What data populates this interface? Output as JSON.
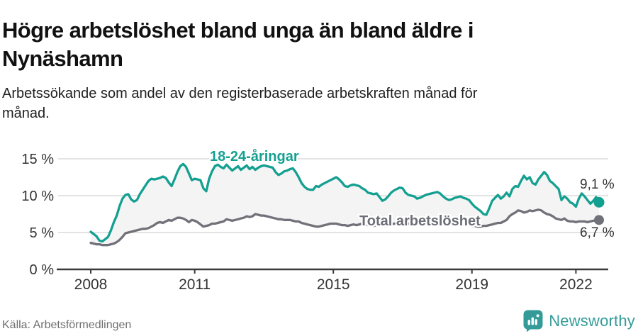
{
  "header": {
    "title": "Högre arbetslöshet bland unga än bland äldre i Nynäshamn",
    "subtitle": "Arbetssökande som andel av den registerbaserade arbetskraften månad för månad."
  },
  "footer": {
    "source": "Källa: Arbetsförmedlingen",
    "brand": "Newsworthy"
  },
  "colors": {
    "youth_line": "#14a091",
    "total_line": "#717179",
    "area_fill": "#f4f4f4",
    "gridline": "#dadada",
    "axis": "#3a3a3a",
    "brand_teal": "#349b99"
  },
  "chart_data": {
    "type": "line",
    "title": "Högre arbetslöshet bland unga än bland äldre i Nynäshamn",
    "subtitle": "Arbetssökande som andel av den registerbaserade arbetskraften månad för månad.",
    "ylabel": "%",
    "xlabel": "",
    "x_start": "2008-01",
    "x_end": "2022-09",
    "frequency": "monthly",
    "ylim": [
      0,
      16.3
    ],
    "grid": "horizontal",
    "legend_position": "inline-labels",
    "y_ticks": [
      {
        "v": 0,
        "label": "0 %"
      },
      {
        "v": 5,
        "label": "5 %"
      },
      {
        "v": 10,
        "label": "10 %"
      },
      {
        "v": 15,
        "label": "15 %"
      }
    ],
    "x_ticks": [
      {
        "month": 0,
        "label": "2008"
      },
      {
        "month": 36,
        "label": "2011"
      },
      {
        "month": 84,
        "label": "2015"
      },
      {
        "month": 132,
        "label": "2019"
      },
      {
        "month": 168,
        "label": "2022"
      }
    ],
    "series": [
      {
        "name": "18-24-åringar",
        "color": "#14a091",
        "end_label": "9,1 %",
        "end_value": 9.1,
        "values": [
          5.1,
          4.8,
          4.5,
          3.9,
          3.8,
          4.1,
          4.4,
          5.3,
          6.4,
          7.3,
          8.6,
          9.6,
          10.1,
          10.2,
          9.5,
          9.2,
          9.4,
          10.2,
          10.8,
          11.4,
          12.0,
          12.3,
          12.2,
          12.3,
          12.4,
          12.6,
          12.4,
          11.8,
          11.3,
          12.2,
          13.2,
          14.0,
          14.3,
          13.9,
          13.0,
          12.1,
          12.3,
          12.2,
          12.1,
          11.0,
          10.6,
          12.3,
          13.3,
          14.0,
          14.2,
          13.9,
          13.7,
          14.2,
          13.8,
          13.4,
          13.7,
          14.0,
          13.5,
          13.8,
          14.1,
          13.6,
          13.9,
          13.5,
          13.8,
          14.0,
          14.1,
          14.0,
          13.9,
          13.8,
          13.2,
          12.8,
          13.0,
          13.3,
          13.4,
          13.6,
          13.7,
          13.2,
          12.5,
          11.7,
          11.2,
          10.9,
          10.8,
          10.8,
          11.3,
          11.2,
          11.5,
          11.7,
          11.9,
          12.1,
          12.3,
          12.5,
          12.2,
          11.8,
          11.3,
          11.2,
          11.4,
          11.5,
          11.4,
          11.3,
          11.0,
          10.8,
          10.4,
          10.3,
          10.2,
          10.3,
          9.8,
          9.3,
          9.5,
          9.9,
          10.4,
          10.7,
          10.9,
          11.1,
          11.0,
          10.4,
          10.1,
          10.0,
          9.9,
          9.6,
          9.7,
          9.9,
          10.1,
          10.2,
          10.3,
          10.4,
          10.5,
          10.3,
          9.9,
          9.6,
          9.4,
          9.5,
          9.7,
          9.8,
          9.9,
          9.7,
          9.6,
          9.4,
          8.9,
          8.5,
          8.2,
          7.9,
          7.5,
          7.4,
          8.3,
          9.3,
          9.7,
          10.1,
          9.6,
          9.9,
          10.4,
          9.9,
          10.9,
          11.3,
          11.2,
          12.0,
          12.7,
          12.2,
          12.5,
          11.7,
          11.5,
          12.2,
          12.7,
          13.2,
          12.8,
          12.0,
          11.7,
          11.3,
          10.9,
          9.4,
          9.9,
          9.6,
          9.1,
          8.9,
          8.5,
          9.6,
          10.3,
          9.9,
          9.4,
          8.9,
          9.3,
          9.8,
          9.1
        ]
      },
      {
        "name": "Total arbetslöshet",
        "color": "#717179",
        "end_label": "6,7 %",
        "end_value": 6.7,
        "values": [
          3.6,
          3.5,
          3.4,
          3.4,
          3.3,
          3.3,
          3.3,
          3.4,
          3.5,
          3.7,
          4.0,
          4.4,
          4.9,
          5.0,
          5.1,
          5.2,
          5.3,
          5.4,
          5.5,
          5.5,
          5.6,
          5.8,
          6.0,
          6.3,
          6.4,
          6.3,
          6.5,
          6.7,
          6.6,
          6.8,
          7.0,
          7.0,
          6.9,
          6.7,
          6.4,
          6.7,
          6.6,
          6.4,
          6.1,
          5.8,
          5.9,
          6.0,
          6.2,
          6.2,
          6.3,
          6.4,
          6.5,
          6.8,
          6.7,
          6.6,
          6.7,
          6.8,
          6.9,
          7.0,
          7.2,
          7.1,
          7.2,
          7.5,
          7.4,
          7.3,
          7.3,
          7.2,
          7.1,
          7.0,
          6.9,
          6.8,
          6.8,
          6.7,
          6.7,
          6.7,
          6.6,
          6.5,
          6.5,
          6.3,
          6.2,
          6.1,
          6.0,
          5.9,
          5.8,
          5.8,
          5.9,
          6.0,
          6.1,
          6.2,
          6.2,
          6.2,
          6.1,
          6.0,
          6.0,
          5.9,
          6.0,
          6.1,
          6.0,
          6.1,
          6.2,
          6.1,
          6.0,
          6.0,
          5.9,
          6.0,
          6.1,
          6.0,
          5.9,
          6.0,
          6.1,
          6.2,
          6.2,
          6.3,
          6.3,
          6.2,
          6.2,
          6.3,
          6.3,
          6.2,
          6.3,
          6.4,
          6.4,
          6.5,
          6.5,
          6.4,
          6.4,
          6.3,
          6.2,
          6.2,
          6.1,
          6.0,
          6.1,
          6.1,
          6.2,
          6.1,
          6.0,
          6.0,
          5.9,
          5.9,
          5.8,
          5.8,
          5.9,
          5.9,
          6.0,
          6.1,
          6.2,
          6.3,
          6.3,
          6.5,
          6.7,
          7.2,
          7.5,
          7.7,
          8.0,
          7.9,
          7.7,
          7.8,
          8.0,
          7.9,
          8.0,
          8.1,
          8.0,
          7.7,
          7.5,
          7.4,
          7.2,
          6.9,
          6.8,
          6.7,
          6.9,
          6.6,
          6.5,
          6.5,
          6.4,
          6.5,
          6.5,
          6.5,
          6.4,
          6.5,
          6.6,
          6.6,
          6.7
        ]
      }
    ]
  }
}
